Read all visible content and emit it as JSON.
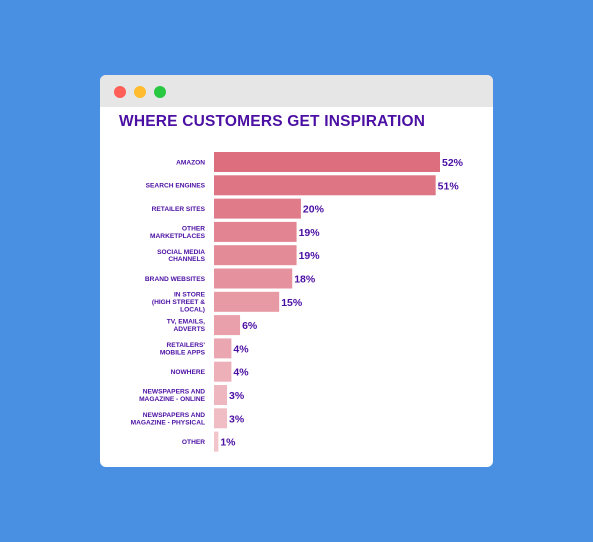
{
  "page": {
    "background_color": "#4a90e2"
  },
  "window": {
    "controls": [
      "close-button",
      "minimize-button",
      "maximize-button"
    ],
    "control_colors": [
      "#ff5f57",
      "#febc2e",
      "#28c840"
    ]
  },
  "chart_data": {
    "type": "bar",
    "orientation": "horizontal",
    "title": "WHERE CUSTOMERS GET INSPIRATION",
    "categories": [
      [
        "AMAZON"
      ],
      [
        "SEARCH ENGINES"
      ],
      [
        "RETAILER SITES"
      ],
      [
        "OTHER",
        "MARKETPLACES"
      ],
      [
        "SOCIAL MEDIA",
        "CHANNELS"
      ],
      [
        "BRAND WEBSITES"
      ],
      [
        "IN STORE",
        "(HIGH STREET &",
        "LOCAL)"
      ],
      [
        "TV, EMAILS,",
        "ADVERTS"
      ],
      [
        "RETAILERS'",
        "MOBILE APPS"
      ],
      [
        "NOWHERE"
      ],
      [
        "NEWSPAPERS AND",
        "MAGAZINE - ONLINE"
      ],
      [
        "NEWSPAPERS AND",
        "MAGAZINE - PHYSICAL"
      ],
      [
        "OTHER"
      ]
    ],
    "values": [
      52,
      51,
      20,
      19,
      19,
      18,
      15,
      6,
      4,
      4,
      3,
      3,
      1
    ],
    "value_labels": [
      "52%",
      "51%",
      "20%",
      "19%",
      "19%",
      "18%",
      "15%",
      "6%",
      "4%",
      "4%",
      "3%",
      "3%",
      "1%"
    ],
    "unit": "%",
    "xlim": [
      0,
      52
    ],
    "grid": false,
    "legend": "none",
    "bar_color_dark": "#dc6e7d",
    "bar_color_light": "#f2c4cb",
    "text_color": "#4b0fa3"
  }
}
